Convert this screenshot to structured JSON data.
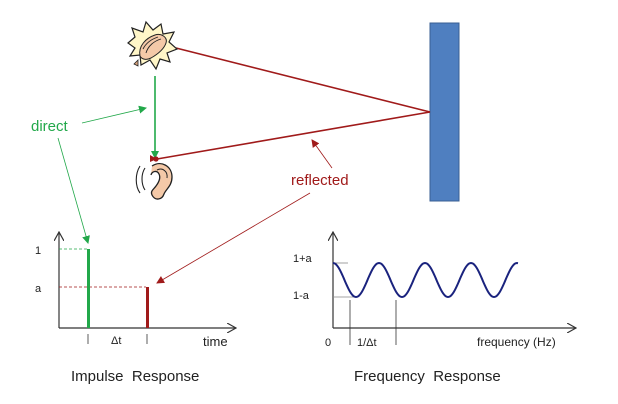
{
  "annotations": {
    "direct": "direct",
    "reflected": "reflected"
  },
  "impulse": {
    "title": "Impulse  Response",
    "y_tick_1": "1",
    "y_tick_a": "a",
    "x_tick_dt": "Δt",
    "x_label": "time"
  },
  "frequency": {
    "title": "Frequency  Response",
    "y_tick_top": "1+a",
    "y_tick_bottom": "1-a",
    "x_tick_0": "0",
    "x_tick_inv_dt": "1/Δt",
    "x_label": "frequency (Hz)"
  },
  "colors": {
    "direct": "#22a84a",
    "reflected": "#a01a1a",
    "wall": "#4f7fc0",
    "wall_border": "#3a5f93",
    "curve": "#1a237e",
    "axis": "#333333",
    "text": "#222222"
  },
  "icons": {
    "source": "clapping-hands-icon",
    "listener": "ear-icon"
  }
}
